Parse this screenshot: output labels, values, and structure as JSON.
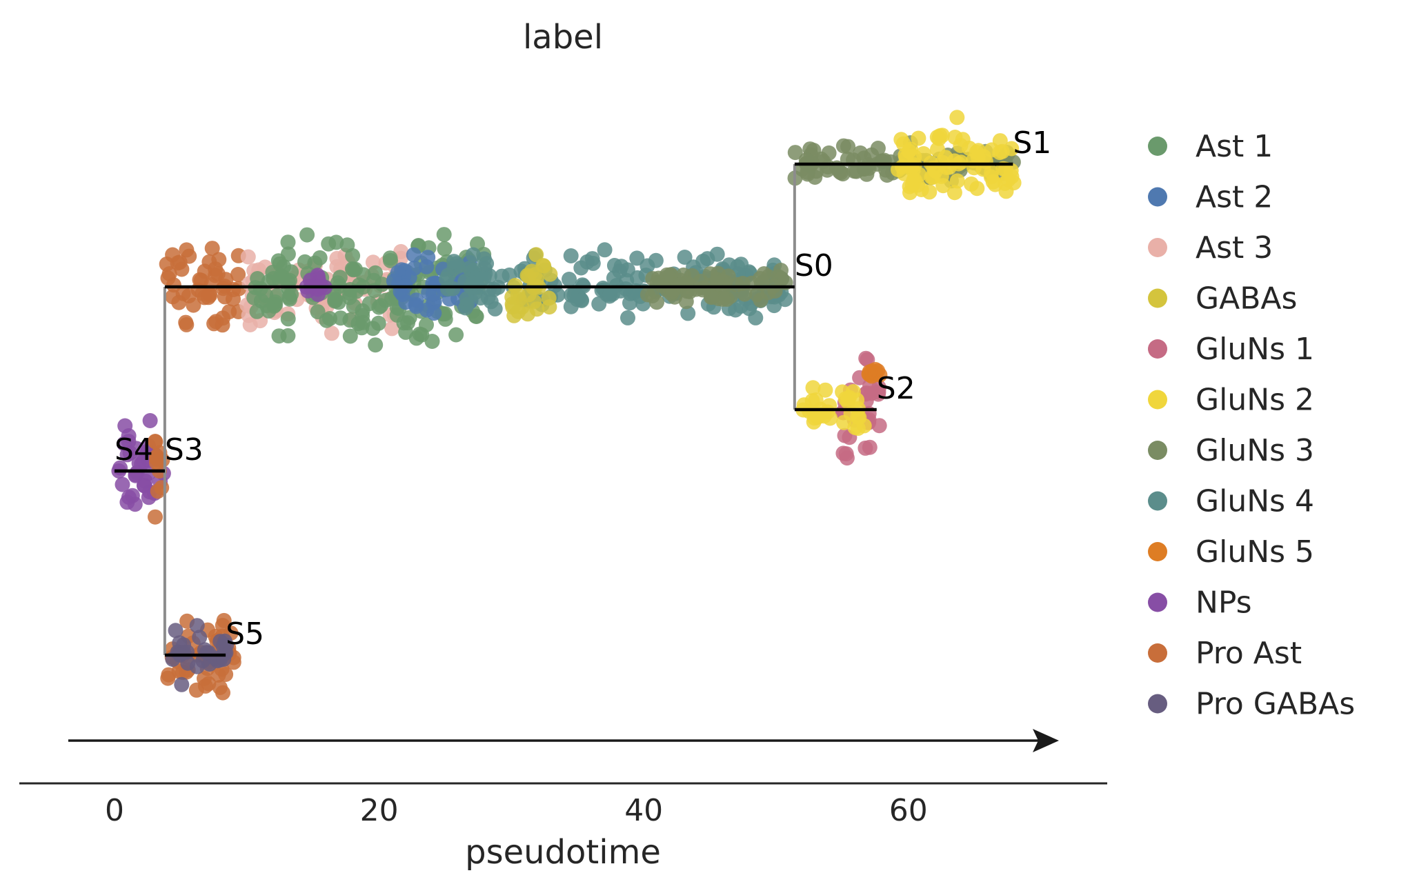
{
  "chart_data": {
    "type": "scatter",
    "title": "label",
    "xlabel": "pseudotime",
    "ylabel": "",
    "xlim": [
      -3.5,
      74.5
    ],
    "xticks": [
      0,
      20,
      40,
      60
    ],
    "xtick_labels": [
      "0",
      "20",
      "40",
      "60"
    ],
    "grid": false,
    "legend_position": "right",
    "legend": [
      {
        "name": "Ast 1",
        "color": "#6a9a6c"
      },
      {
        "name": "Ast 2",
        "color": "#4f79b0"
      },
      {
        "name": "Ast 3",
        "color": "#e9b0a8"
      },
      {
        "name": "GABAs",
        "color": "#d4c43d"
      },
      {
        "name": "GluNs 1",
        "color": "#c56b84"
      },
      {
        "name": "GluNs 2",
        "color": "#f0d63c"
      },
      {
        "name": "GluNs 3",
        "color": "#7a8c63"
      },
      {
        "name": "GluNs 4",
        "color": "#5b8d8b"
      },
      {
        "name": "GluNs 5",
        "color": "#de7d24"
      },
      {
        "name": "NPs",
        "color": "#874ea5"
      },
      {
        "name": "Pro Ast",
        "color": "#c86e3a"
      },
      {
        "name": "Pro GABAs",
        "color": "#675d80"
      }
    ],
    "branches": [
      {
        "name": "S0",
        "x_start": 3.8,
        "x_end": 51.4,
        "track": 0
      },
      {
        "name": "S1",
        "x_start": 51.4,
        "x_end": 67.9,
        "track": 1
      },
      {
        "name": "S2",
        "x_start": 51.4,
        "x_end": 57.6,
        "track": -1
      },
      {
        "name": "S3",
        "x_start": 0.0,
        "x_end": 3.8,
        "track": -1.5
      },
      {
        "name": "S4",
        "x_start": 0.0,
        "x_end": 3.8,
        "track": -1.5
      },
      {
        "name": "S5",
        "x_start": 3.8,
        "x_end": 8.4,
        "track": -3
      }
    ],
    "clusters": [
      {
        "label": "NPs",
        "x": [
          0,
          3.8
        ],
        "track": -1.5,
        "spread": 0.55
      },
      {
        "label": "Pro Ast",
        "x": [
          3.0,
          3.8
        ],
        "track": -1.5,
        "spread": 0.5
      },
      {
        "label": "Pro Ast",
        "x": [
          3.8,
          9.5
        ],
        "track": 0,
        "spread": 0.45
      },
      {
        "label": "Pro Ast",
        "x": [
          4.0,
          9.2
        ],
        "track": -3,
        "spread": 0.45
      },
      {
        "label": "Pro GABAs",
        "x": [
          4.0,
          8.5
        ],
        "track": -3,
        "spread": 0.3
      },
      {
        "label": "Ast 3",
        "x": [
          10,
          22
        ],
        "track": 0,
        "spread": 0.45
      },
      {
        "label": "Ast 1",
        "x": [
          10,
          28
        ],
        "track": 0,
        "spread": 0.55
      },
      {
        "label": "NPs",
        "x": [
          14.5,
          16
        ],
        "track": 0,
        "spread": 0.12
      },
      {
        "label": "Ast 2",
        "x": [
          21,
          27
        ],
        "track": 0,
        "spread": 0.35
      },
      {
        "label": "GluNs 4",
        "x": [
          25,
          51
        ],
        "track": 0,
        "spread": 0.35
      },
      {
        "label": "GABAs",
        "x": [
          30,
          33
        ],
        "track": 0,
        "spread": 0.5
      },
      {
        "label": "GluNs 3",
        "x": [
          40,
          51
        ],
        "track": 0,
        "spread": 0.2
      },
      {
        "label": "GluNs 3",
        "x": [
          51.4,
          68
        ],
        "track": 1,
        "spread": 0.2
      },
      {
        "label": "GluNs 2",
        "x": [
          59,
          68
        ],
        "track": 1,
        "spread": 0.45
      },
      {
        "label": "GluNs 1",
        "x": [
          55,
          58
        ],
        "track": -1,
        "spread": 0.55
      },
      {
        "label": "GluNs 2",
        "x": [
          52,
          57
        ],
        "track": -1,
        "spread": 0.25
      },
      {
        "label": "GluNs 5",
        "x": [
          57,
          58
        ],
        "track": -0.7,
        "spread": 0.05
      }
    ]
  }
}
